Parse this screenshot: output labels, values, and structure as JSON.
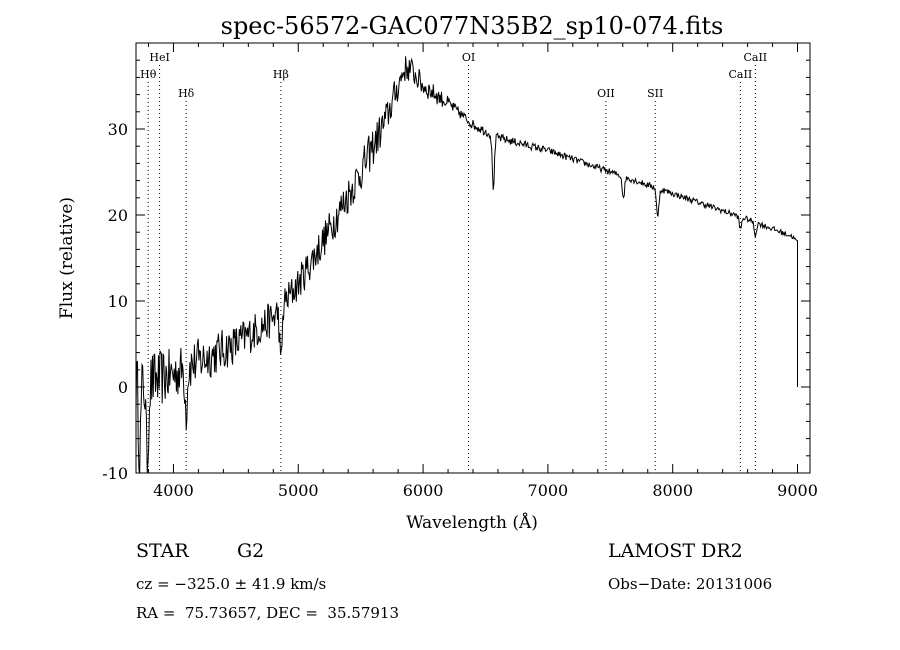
{
  "chart_data": {
    "type": "line",
    "title": "spec-56572-GAC077N35B2_sp10-074.fits",
    "xlabel": "Wavelength (Å)",
    "ylabel": "Flux (relative)",
    "xlim": [
      3700,
      9100
    ],
    "ylim": [
      -10,
      40
    ],
    "xticks": [
      4000,
      5000,
      6000,
      7000,
      8000,
      9000
    ],
    "yticks": [
      -10,
      0,
      10,
      20,
      30
    ],
    "grid": false,
    "line_color": "#000000",
    "continuum_knots": {
      "x": [
        3700,
        3800,
        4000,
        4200,
        4500,
        4800,
        5000,
        5200,
        5500,
        5700,
        5850,
        5900,
        6000,
        6200,
        6400,
        6600,
        7000,
        7400,
        7800,
        8200,
        8600,
        8960,
        8990
      ],
      "y": [
        0.5,
        0.5,
        1.5,
        3.0,
        5.0,
        8.0,
        12.0,
        17.0,
        25.0,
        31.0,
        37.0,
        37.0,
        35.0,
        33.0,
        30.5,
        29.0,
        27.5,
        25.5,
        23.5,
        21.5,
        19.5,
        17.5,
        17.0
      ]
    },
    "noise_knots": {
      "x": [
        3700,
        4000,
        4500,
        5000,
        5600,
        5900,
        6300,
        7000,
        9000
      ],
      "amplitude": [
        4.0,
        3.0,
        2.3,
        2.0,
        2.3,
        1.5,
        0.6,
        0.4,
        0.3
      ]
    },
    "absorption_features": [
      {
        "x": 3730,
        "depth": 8
      },
      {
        "x": 3790,
        "depth": 10
      },
      {
        "x": 4102,
        "depth": 5
      },
      {
        "x": 4861,
        "depth": 7
      },
      {
        "x": 6563,
        "depth": 6
      },
      {
        "x": 7605,
        "depth": 2.5
      },
      {
        "x": 7880,
        "depth": 3.5
      },
      {
        "x": 8542,
        "depth": 1.5
      },
      {
        "x": 8662,
        "depth": 1.5
      }
    ],
    "end_drop": {
      "x": 9000,
      "y": 0
    },
    "line_markers": [
      {
        "label": "HeI",
        "x": 3889,
        "tier": "top"
      },
      {
        "label": "Hθ",
        "x": 3798,
        "tier": "middle"
      },
      {
        "label": "Hδ",
        "x": 4102,
        "tier": "lower"
      },
      {
        "label": "Hβ",
        "x": 4861,
        "tier": "middle"
      },
      {
        "label": "OI",
        "x": 6364,
        "tier": "top"
      },
      {
        "label": "OII",
        "x": 7465,
        "tier": "lower"
      },
      {
        "label": "SII",
        "x": 7860,
        "tier": "lower"
      },
      {
        "label": "CaII",
        "x": 8542,
        "tier": "middle"
      },
      {
        "label": "CaII",
        "x": 8662,
        "tier": "top"
      }
    ]
  },
  "info": {
    "class": "STAR",
    "subclass": "G2",
    "survey": "LAMOST DR2",
    "cz": "cz = −325.0 ± 41.9 km/s",
    "obs_date": "Obs−Date: 20131006",
    "radec": "RA =  75.73657, DEC =  35.57913"
  }
}
